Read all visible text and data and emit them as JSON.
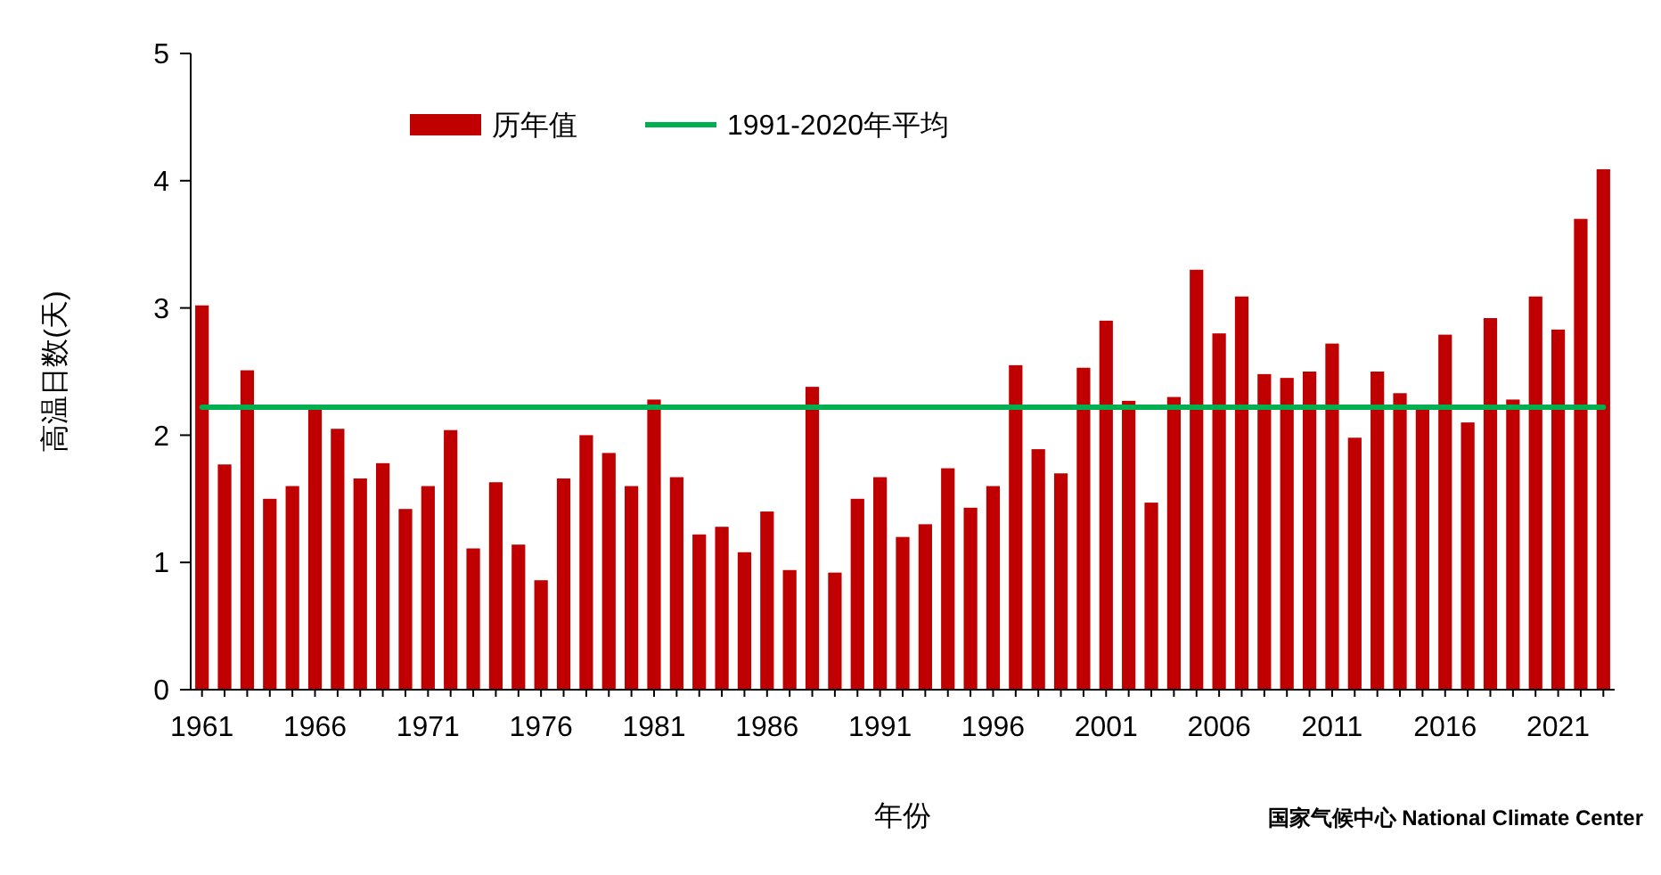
{
  "chart_data": {
    "type": "bar",
    "xlabel": "年份",
    "ylabel": "高温日数(天)",
    "ylim": [
      0,
      5
    ],
    "yticks": [
      0,
      1,
      2,
      3,
      4,
      5
    ],
    "legend": "top left",
    "annotations": [
      "国家气候中心 National Climate Center"
    ],
    "categories": [
      "1961",
      null,
      null,
      null,
      null,
      "1966",
      null,
      null,
      null,
      null,
      "1971",
      null,
      null,
      null,
      null,
      "1976",
      null,
      null,
      null,
      null,
      "1981",
      null,
      null,
      null,
      null,
      "1986",
      null,
      null,
      null,
      null,
      "1991",
      null,
      null,
      null,
      null,
      "1996",
      null,
      null,
      null,
      null,
      "2001",
      null,
      null,
      null,
      null,
      "2006",
      null,
      null,
      null,
      null,
      "2011",
      null,
      null,
      null,
      null,
      "2016",
      null,
      null,
      null,
      null,
      "2021",
      null,
      null
    ],
    "series": [
      {
        "name": "历年值",
        "color": "#c00000",
        "values": [
          3.02,
          1.77,
          2.51,
          1.5,
          1.6,
          2.2,
          2.05,
          1.66,
          1.78,
          1.42,
          1.6,
          2.04,
          1.11,
          1.63,
          1.14,
          0.86,
          1.66,
          2.0,
          1.86,
          1.6,
          2.28,
          1.67,
          1.22,
          1.28,
          1.08,
          1.4,
          0.94,
          2.38,
          0.92,
          1.5,
          1.67,
          1.2,
          1.3,
          1.74,
          1.43,
          1.6,
          2.55,
          1.89,
          1.7,
          2.53,
          2.9,
          2.27,
          1.47,
          2.3,
          3.3,
          2.8,
          3.09,
          2.48,
          2.45,
          2.5,
          2.72,
          1.98,
          2.5,
          2.33,
          2.2,
          2.79,
          2.1,
          2.92,
          2.28,
          3.09,
          2.83,
          3.7,
          4.09
        ]
      },
      {
        "name": "1991-2020年平均",
        "type": "line",
        "color": "#00b050",
        "values": [
          2.22,
          2.22,
          2.22,
          2.22,
          2.22,
          2.22,
          2.22,
          2.22,
          2.22,
          2.22,
          2.22,
          2.22,
          2.22,
          2.22,
          2.22,
          2.22,
          2.22,
          2.22,
          2.22,
          2.22,
          2.22,
          2.22,
          2.22,
          2.22,
          2.22,
          2.22,
          2.22,
          2.22,
          2.22,
          2.22,
          2.22,
          2.22,
          2.22,
          2.22,
          2.22,
          2.22,
          2.22,
          2.22,
          2.22,
          2.22,
          2.22,
          2.22,
          2.22,
          2.22,
          2.22,
          2.22,
          2.22,
          2.22,
          2.22,
          2.22,
          2.22,
          2.22,
          2.22,
          2.22,
          2.22,
          2.22,
          2.22,
          2.22,
          2.22,
          2.22,
          2.22,
          2.22,
          2.22
        ]
      }
    ]
  }
}
